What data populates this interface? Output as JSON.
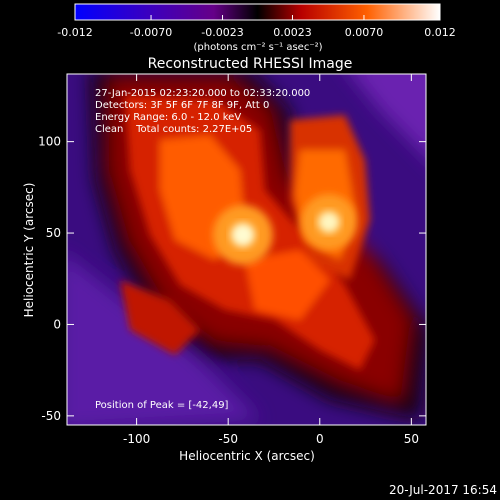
{
  "colorbar": {
    "ticks": [
      "-0.012",
      "-0.0070",
      "-0.0023",
      "0.0023",
      "0.0070",
      "0.012"
    ],
    "tick_values": [
      -0.012,
      -0.007,
      -0.0023,
      0.0023,
      0.007,
      0.012
    ],
    "range": [
      -0.012,
      0.012
    ],
    "units": "(photons cm⁻² s⁻¹ asec⁻²)"
  },
  "chart_data": {
    "type": "heatmap",
    "title": "Reconstructed RHESSI Image",
    "xlabel": "Heliocentric X (arcsec)",
    "ylabel": "Heliocentric Y (arcsec)",
    "xlim": [
      -138,
      58
    ],
    "ylim": [
      -55,
      137
    ],
    "x_ticks": [
      -100,
      -50,
      0,
      50
    ],
    "y_ticks": [
      -50,
      0,
      50,
      100
    ],
    "annotations": [
      "27-Jan-2015 02:23:20.000 to 02:33:20.000",
      "Detectors: 3F 5F 6F 7F 8F 9F, Att 0",
      "Energy Range: 6.0 - 12.0 keV",
      "Clean    Total counts: 2.27E+05"
    ],
    "peak_label": "Position of Peak = [-42,49]",
    "peak": [
      -42,
      49
    ],
    "secondary_peak": [
      5,
      56
    ]
  },
  "footer": {
    "timestamp": "20-Jul-2017 16:54"
  }
}
